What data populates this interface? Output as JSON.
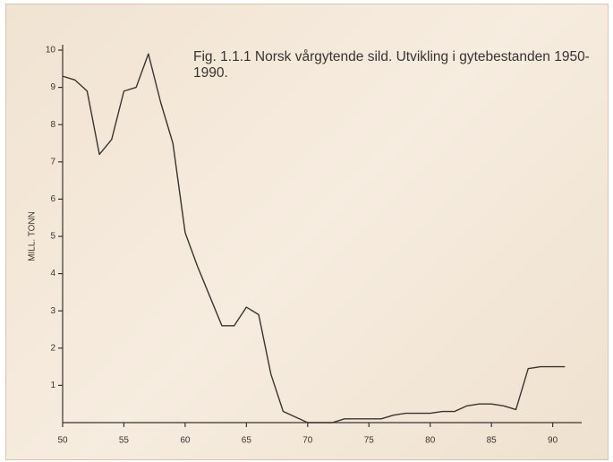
{
  "chart_data": {
    "type": "line",
    "title": "Fig. 1.1.1  Norsk vårgytende sild. Utvikling i gytebestanden 1950-1990.",
    "y_label": "MILL. TONN",
    "x": [
      50,
      51,
      52,
      53,
      54,
      55,
      56,
      57,
      58,
      59,
      60,
      61,
      62,
      63,
      64,
      65,
      66,
      67,
      68,
      69,
      70,
      71,
      72,
      73,
      74,
      75,
      76,
      77,
      78,
      79,
      80,
      81,
      82,
      83,
      84,
      85,
      86,
      87,
      88,
      89,
      90,
      91
    ],
    "series": [
      {
        "name": null,
        "color": "#3a3430",
        "values": [
          9.3,
          9.2,
          8.9,
          7.2,
          7.6,
          8.9,
          9.0,
          9.9,
          8.6,
          7.5,
          5.1,
          4.2,
          3.4,
          2.6,
          2.6,
          3.1,
          2.9,
          1.3,
          0.3,
          0.15,
          0.0,
          0.0,
          0.0,
          0.1,
          0.1,
          0.1,
          0.1,
          0.2,
          0.25,
          0.25,
          0.25,
          0.3,
          0.3,
          0.45,
          0.5,
          0.5,
          0.45,
          0.35,
          1.45,
          1.5,
          1.5,
          1.5
        ]
      }
    ],
    "xlim": [
      50,
      92
    ],
    "xticks": [
      50,
      55,
      60,
      65,
      70,
      75,
      80,
      85,
      90
    ],
    "ylim": [
      0,
      10
    ],
    "yticks": [
      1,
      2,
      3,
      4,
      5,
      6,
      7,
      8,
      9,
      10
    ],
    "grid": false
  }
}
